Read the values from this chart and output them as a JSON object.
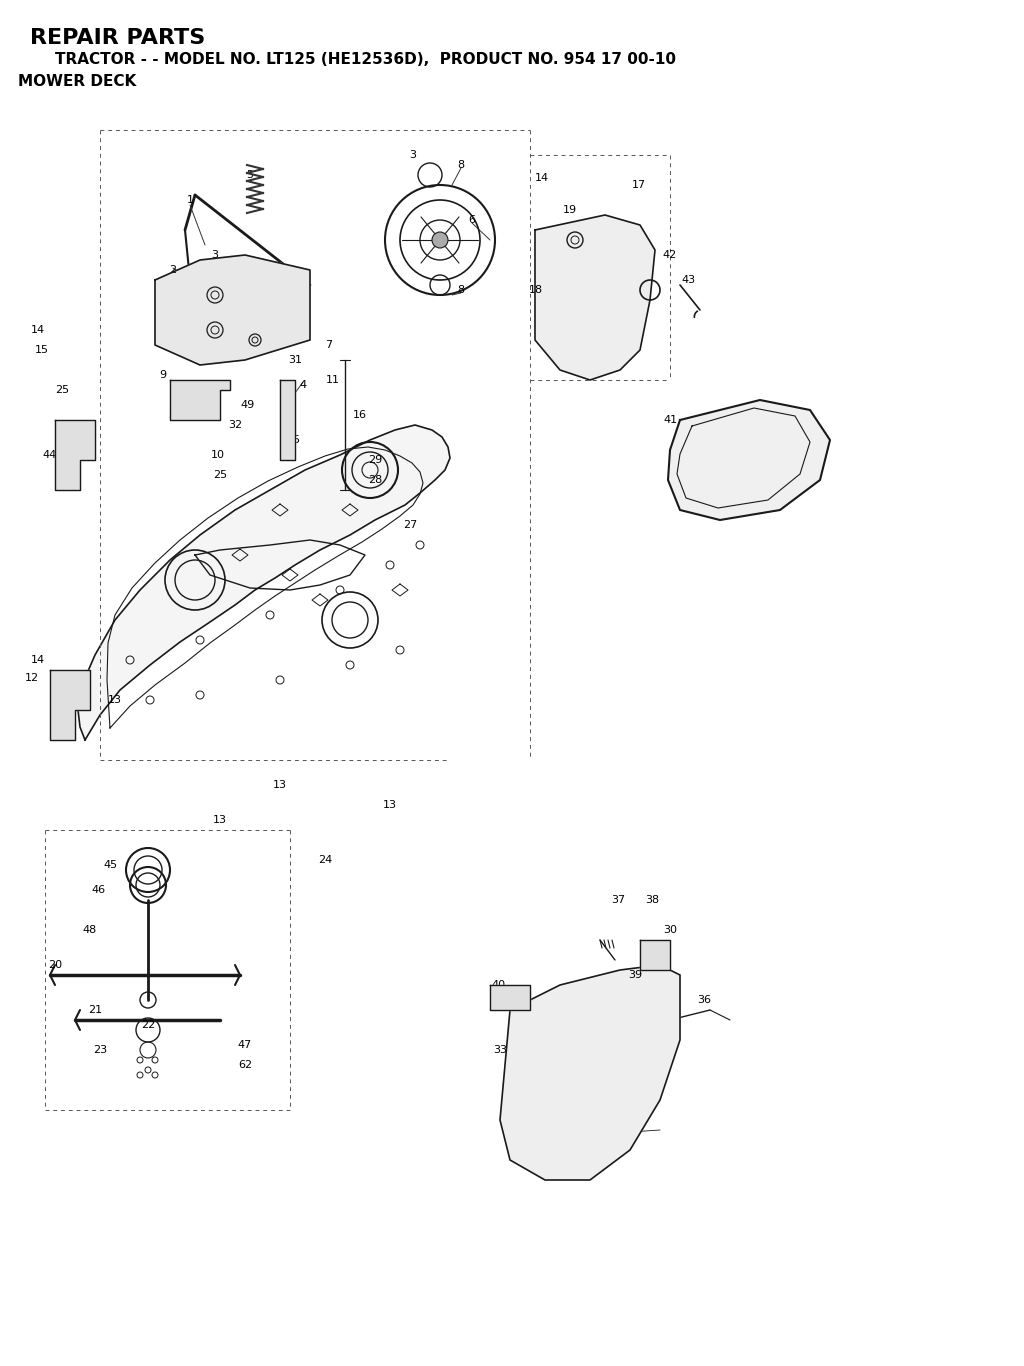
{
  "title1": "REPAIR PARTS",
  "title2": "TRACTOR - - MODEL NO. LT125 (HE12536D),  PRODUCT NO. 954 17 00-10",
  "title3": "MOWER DECK",
  "bg_color": "#ffffff",
  "line_color": "#1a1a1a",
  "text_color": "#000000",
  "fig_width": 10.24,
  "fig_height": 13.66,
  "dpi": 100
}
